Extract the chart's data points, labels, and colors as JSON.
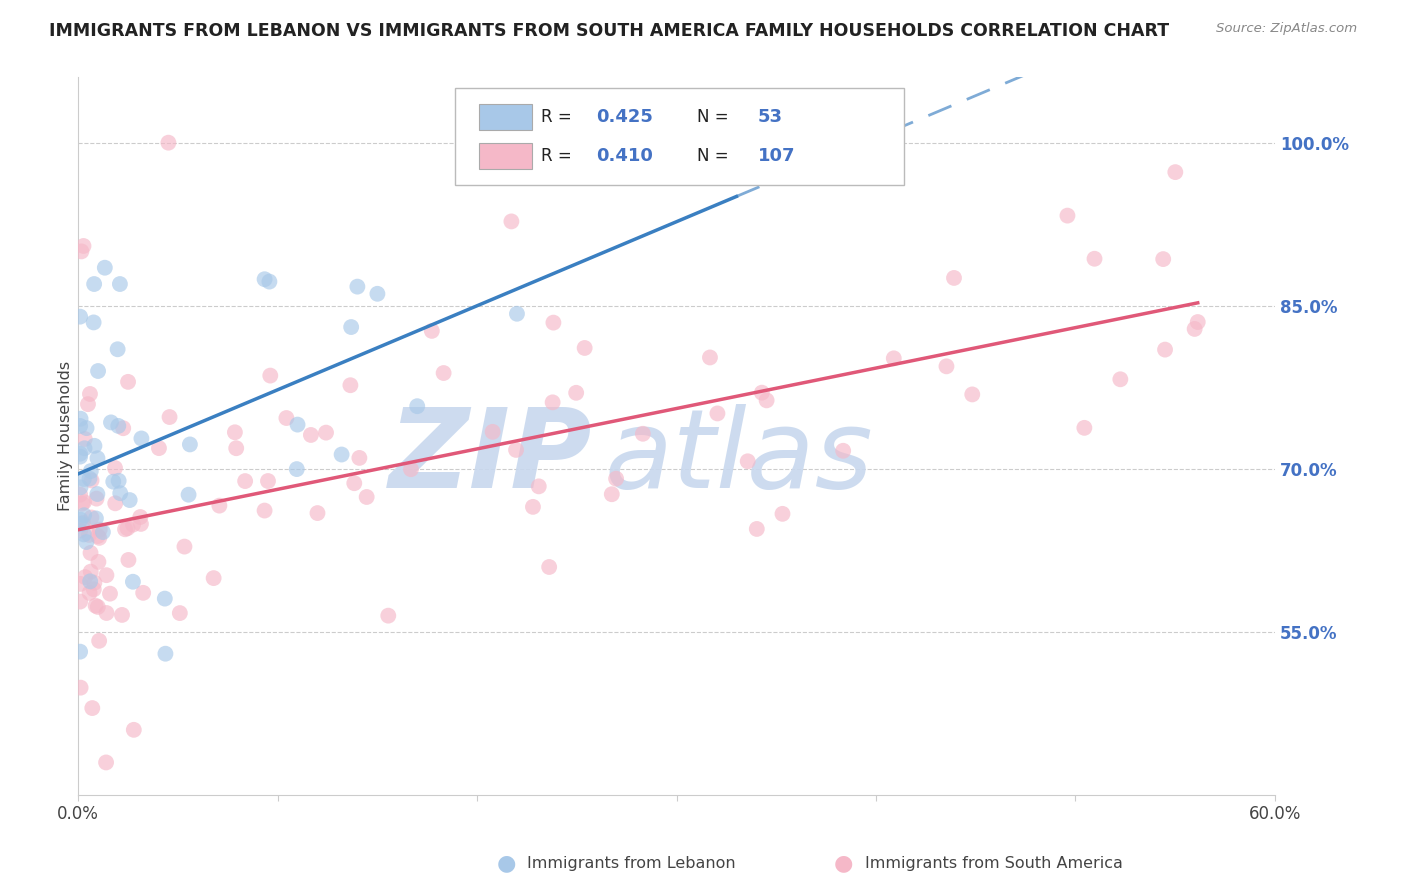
{
  "title": "IMMIGRANTS FROM LEBANON VS IMMIGRANTS FROM SOUTH AMERICA FAMILY HOUSEHOLDS CORRELATION CHART",
  "source": "Source: ZipAtlas.com",
  "ylabel": "Family Households",
  "xlim": [
    0.0,
    0.6
  ],
  "ylim": [
    0.4,
    1.06
  ],
  "right_yticks": [
    0.55,
    0.7,
    0.85,
    1.0
  ],
  "right_yticklabels": [
    "55.0%",
    "70.0%",
    "85.0%",
    "100.0%"
  ],
  "lebanon_R": "0.425",
  "lebanon_N": "53",
  "southam_R": "0.410",
  "southam_N": "107",
  "blue_color": "#a8c8e8",
  "pink_color": "#f5b8c8",
  "blue_line_color": "#3a7fc1",
  "pink_line_color": "#e05878",
  "legend_blue_fill": "#a8c8e8",
  "legend_pink_fill": "#f5b8c8",
  "legend_R_color": "#000000",
  "legend_N_color": "#000000",
  "legend_val_color": "#4472c4",
  "right_axis_color": "#4472c4",
  "watermark_zip_color": "#c8d8ee",
  "watermark_atlas_color": "#c8d8ee",
  "title_color": "#222222",
  "source_color": "#888888",
  "grid_color": "#cccccc"
}
